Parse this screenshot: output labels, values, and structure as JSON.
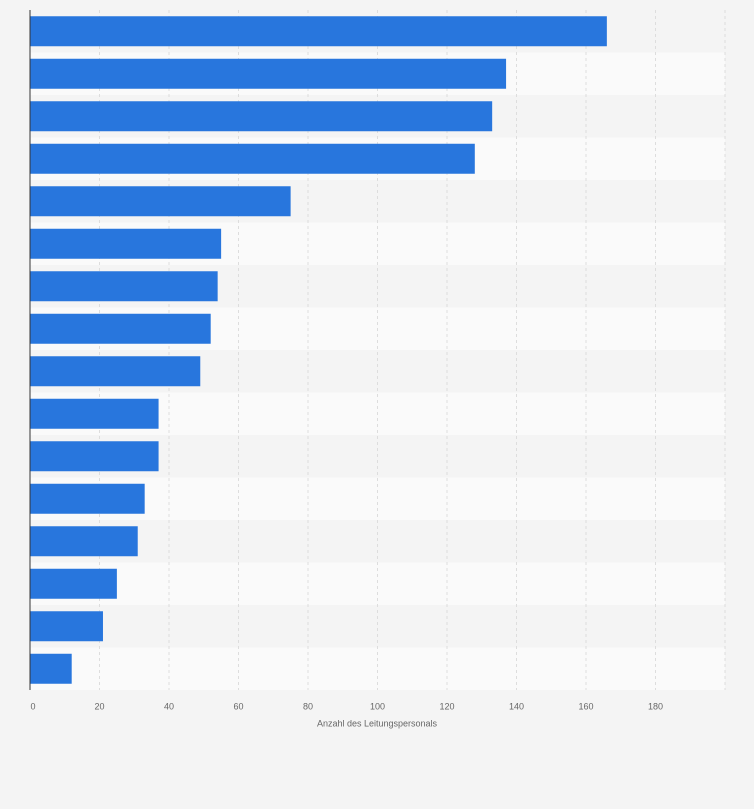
{
  "chart_data": {
    "type": "hbar",
    "x_label": "Anzahl des Leitungspersonals",
    "categories": [
      null,
      null,
      null,
      null,
      null,
      null,
      null,
      null,
      null,
      null,
      null,
      null,
      null,
      null,
      null,
      null
    ],
    "values": [
      166,
      137,
      133,
      128,
      75,
      55,
      54,
      52,
      49,
      37,
      37,
      33,
      31,
      25,
      21,
      12
    ],
    "color": "#2876dd",
    "xlim": [
      0,
      200
    ],
    "xticks": [
      0,
      20,
      40,
      60,
      80,
      100,
      120,
      140,
      160,
      180
    ],
    "grid": true
  }
}
